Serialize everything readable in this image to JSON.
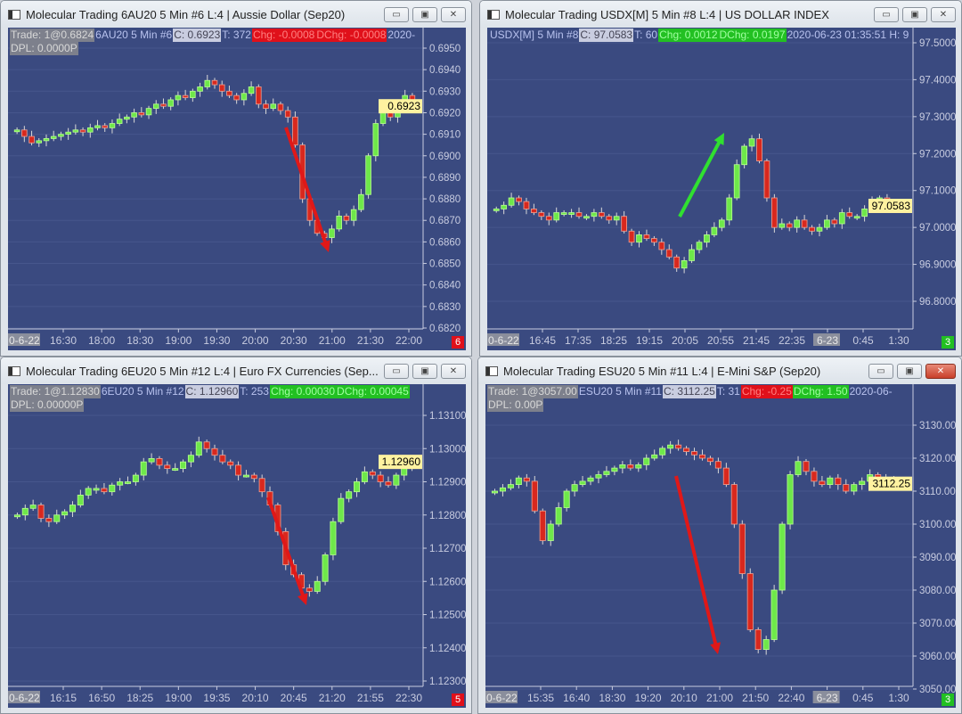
{
  "windows": [
    {
      "title": "Molecular Trading  6AU20  5 Min   #6  L:4 | Aussie Dollar (Sep20)",
      "info": {
        "trade": "Trade: 1@0.6824",
        "sym": "6AU20  5 Min  #6",
        "close": "C: 0.6923",
        "ticks": "T: 372",
        "chg": "Chg: -0.0008",
        "dchg": "DChg: -0.0008",
        "date": "2020-",
        "dpl": "DPL: 0.0000P"
      },
      "chg_color": "red",
      "dchg_color": "red",
      "badge": "6",
      "badge_color": "#e0101a",
      "arrow_color": "#e01818",
      "window_buttons": [
        "minimize",
        "maximize",
        "close"
      ]
    },
    {
      "title": "Molecular Trading  USDX[M]  5 Min   #8  L:4 | US DOLLAR INDEX",
      "info": {
        "trade": "",
        "sym": "USDX[M]  5 Min  #8",
        "close": "C: 97.0583",
        "ticks": "T: 60",
        "chg": "Chg: 0.0012",
        "dchg": "DChg: 0.0197",
        "date": "2020-06-23 01:35:51 H: 9",
        "dpl": ""
      },
      "chg_color": "green",
      "dchg_color": "green",
      "badge": "3",
      "badge_color": "#22c022",
      "arrow_color": "#30e030",
      "window_buttons": [
        "minimize",
        "maximize",
        "close"
      ]
    },
    {
      "title": "Molecular Trading  6EU20  5 Min   #12  L:4 | Euro FX Currencies (Sep...",
      "info": {
        "trade": "Trade: 1@1.12830",
        "sym": "6EU20  5 Min  #12",
        "close": "C: 1.12960",
        "ticks": "T: 253",
        "chg": "Chg: 0.00030",
        "dchg": "DChg: 0.00045",
        "date": "",
        "dpl": "DPL: 0.00000P"
      },
      "chg_color": "green",
      "dchg_color": "green",
      "badge": "5",
      "badge_color": "#e0101a",
      "arrow_color": "#e01818",
      "window_buttons": [
        "minimize",
        "maximize",
        "close"
      ]
    },
    {
      "title": "Molecular Trading  ESU20  5 Min   #11  L:4 | E-Mini S&P (Sep20)",
      "info": {
        "trade": "Trade: 1@3057.00",
        "sym": "ESU20  5 Min  #11",
        "close": "C: 3112.25",
        "ticks": "T: 31",
        "chg": "Chg: -0.25",
        "dchg": "DChg: 1.50",
        "date": "2020-06-",
        "dpl": "DPL: 0.00P"
      },
      "chg_color": "red",
      "dchg_color": "green",
      "badge": "3",
      "badge_color": "#22c022",
      "arrow_color": "#e01818",
      "window_buttons": [
        "minimize",
        "maximize",
        "close"
      ]
    }
  ],
  "chart_data": [
    {
      "type": "candlestick",
      "ylim": [
        0.682,
        0.695
      ],
      "yticks": [
        "0.6950",
        "0.6940",
        "0.6930",
        "0.6920",
        "0.6910",
        "0.6900",
        "0.6890",
        "0.6880",
        "0.6870",
        "0.6860",
        "0.6850",
        "0.6840",
        "0.6830",
        "0.6820"
      ],
      "last": "0.6923",
      "last_value": 0.6923,
      "xticks": [
        "0-6-22",
        "16:30",
        "18:00",
        "18:30",
        "19:00",
        "19:30",
        "20:00",
        "20:30",
        "21:00",
        "21:30",
        "22:00"
      ],
      "closes": [
        0.6912,
        0.6909,
        0.6906,
        0.6907,
        0.6908,
        0.6909,
        0.691,
        0.6911,
        0.6912,
        0.6911,
        0.6913,
        0.6914,
        0.6913,
        0.6915,
        0.6917,
        0.6918,
        0.692,
        0.6919,
        0.6922,
        0.6924,
        0.6923,
        0.6926,
        0.6928,
        0.6927,
        0.693,
        0.6932,
        0.6935,
        0.6933,
        0.693,
        0.6928,
        0.6926,
        0.6929,
        0.6932,
        0.6924,
        0.6922,
        0.6924,
        0.6921,
        0.6918,
        0.6905,
        0.688,
        0.687,
        0.6864,
        0.6862,
        0.6866,
        0.6872,
        0.687,
        0.6875,
        0.6882,
        0.69,
        0.6915,
        0.692,
        0.6918,
        0.6922,
        0.6928,
        0.6923
      ]
    },
    {
      "type": "candlestick",
      "ylim": [
        96.8,
        97.5
      ],
      "yticks": [
        "97.5000",
        "97.4000",
        "97.3000",
        "97.2000",
        "97.1000",
        "97.0000",
        "96.9000",
        "96.8000"
      ],
      "last": "97.0583",
      "last_value": 97.0583,
      "xticks": [
        "0-6-22",
        "16:45",
        "17:35",
        "18:25",
        "19:15",
        "20:05",
        "20:55",
        "21:45",
        "22:35",
        "6-23",
        "0:45",
        "1:30"
      ],
      "closes": [
        97.05,
        97.06,
        97.08,
        97.07,
        97.05,
        97.04,
        97.03,
        97.02,
        97.04,
        97.04,
        97.04,
        97.03,
        97.03,
        97.04,
        97.03,
        97.02,
        97.03,
        96.99,
        96.96,
        96.98,
        96.97,
        96.96,
        96.94,
        96.92,
        96.89,
        96.91,
        96.94,
        96.96,
        96.98,
        97.0,
        97.02,
        97.08,
        97.17,
        97.22,
        97.24,
        97.18,
        97.08,
        97.0,
        97.01,
        97.0,
        97.02,
        97.0,
        96.99,
        97.0,
        97.02,
        97.01,
        97.04,
        97.03,
        97.03,
        97.05,
        97.07,
        97.08,
        97.06,
        97.05,
        97.0583
      ]
    },
    {
      "type": "candlestick",
      "ylim": [
        1.123,
        1.131
      ],
      "yticks": [
        "1.13100",
        "1.13000",
        "1.12900",
        "1.12800",
        "1.12700",
        "1.12600",
        "1.12500",
        "1.12400",
        "1.12300"
      ],
      "last": "1.12960",
      "last_value": 1.1296,
      "xticks": [
        "0-6-22",
        "16:15",
        "16:50",
        "18:25",
        "19:00",
        "19:35",
        "20:10",
        "20:45",
        "21:20",
        "21:55",
        "22:30"
      ],
      "closes": [
        1.128,
        1.1282,
        1.1283,
        1.1279,
        1.1278,
        1.128,
        1.1281,
        1.1283,
        1.1286,
        1.1288,
        1.1288,
        1.1287,
        1.1289,
        1.129,
        1.129,
        1.1292,
        1.1296,
        1.1297,
        1.1295,
        1.1294,
        1.1294,
        1.1296,
        1.1298,
        1.1302,
        1.13,
        1.1298,
        1.1296,
        1.1295,
        1.1292,
        1.1292,
        1.1291,
        1.1287,
        1.1283,
        1.1275,
        1.1265,
        1.1262,
        1.1258,
        1.1257,
        1.126,
        1.1268,
        1.1278,
        1.1285,
        1.1287,
        1.129,
        1.1293,
        1.1292,
        1.129,
        1.1289,
        1.1292,
        1.1294,
        1.1296
      ]
    },
    {
      "type": "candlestick",
      "ylim": [
        3050,
        3130
      ],
      "yticks": [
        "3130.00",
        "3120.00",
        "3110.00",
        "3100.00",
        "3090.00",
        "3080.00",
        "3070.00",
        "3060.00",
        "3050.00"
      ],
      "last": "3112.25",
      "last_value": 3112.25,
      "xticks": [
        "0-6-22",
        "15:35",
        "16:40",
        "18:30",
        "19:20",
        "20:10",
        "21:00",
        "21:50",
        "22:40",
        "6-23",
        "0:45",
        "1:30"
      ],
      "closes": [
        3110,
        3111,
        3112,
        3114,
        3113,
        3104,
        3095,
        3100,
        3105,
        3110,
        3112,
        3113,
        3114,
        3115,
        3116,
        3117,
        3118,
        3117,
        3118,
        3120,
        3121,
        3123,
        3124,
        3123,
        3122,
        3121,
        3120,
        3119,
        3117,
        3112,
        3100,
        3085,
        3068,
        3062,
        3065,
        3080,
        3100,
        3115,
        3119,
        3116,
        3113,
        3112,
        3114,
        3112,
        3110,
        3112,
        3113,
        3115,
        3114,
        3113,
        3112,
        3112.25
      ]
    }
  ],
  "colors": {
    "plot_bg": "#3a4a80",
    "up": "#6ee84a",
    "down": "#d8281e",
    "axis_text": "#c8cce0",
    "last_bg": "#fff2a0"
  }
}
